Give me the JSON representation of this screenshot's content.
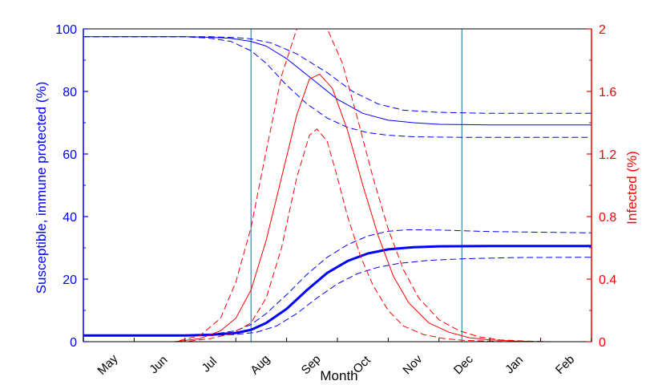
{
  "chart_data": {
    "type": "line",
    "xlabel": "Month",
    "ylabel_left": "Susceptible, immune protected (%)",
    "ylabel_right": "Infected (%)",
    "x_domain_months": [
      0,
      10
    ],
    "x_ticks": [
      {
        "label": "May",
        "pos": 0.5
      },
      {
        "label": "Jun",
        "pos": 1.5
      },
      {
        "label": "Jul",
        "pos": 2.5
      },
      {
        "label": "Aug",
        "pos": 3.5
      },
      {
        "label": "Sep",
        "pos": 4.5
      },
      {
        "label": "Oct",
        "pos": 5.5
      },
      {
        "label": "Nov",
        "pos": 6.5
      },
      {
        "label": "Dec",
        "pos": 7.5
      },
      {
        "label": "Jan",
        "pos": 8.5
      },
      {
        "label": "Feb",
        "pos": 9.5
      }
    ],
    "y_left": {
      "min": 0,
      "max": 100,
      "ticks": [
        "0",
        "20",
        "40",
        "60",
        "80",
        "100"
      ],
      "values": [
        0,
        20,
        40,
        60,
        80,
        100
      ]
    },
    "y_right": {
      "min": 0,
      "max": 2,
      "ticks": [
        "0",
        "0.4",
        "0.8",
        "1.2",
        "1.6",
        "2"
      ],
      "values": [
        0,
        0.4,
        0.8,
        1.2,
        1.6,
        2
      ]
    },
    "vlines_x": [
      3.3,
      7.45
    ],
    "colors": {
      "left_axis": "#0000ff",
      "right_axis": "#ff0000",
      "vlines": "#2f8aa8",
      "frame": "#000000"
    },
    "series": [
      {
        "axis": "left",
        "style": "solid",
        "width": 1,
        "color": "#0000ff",
        "x": [
          0,
          2.0,
          2.5,
          2.9,
          3.3,
          3.6,
          4.0,
          4.5,
          5.0,
          5.5,
          6.0,
          6.5,
          7.0,
          8.0,
          10
        ],
        "y": [
          97.5,
          97.5,
          97.3,
          97.0,
          96.0,
          94.5,
          90.5,
          84.0,
          77.5,
          73.0,
          70.8,
          70.0,
          69.5,
          69.3,
          69.3
        ]
      },
      {
        "axis": "left",
        "style": "dashed",
        "width": 1,
        "color": "#0000ff",
        "x": [
          0,
          2.5,
          3.0,
          3.3,
          3.7,
          4.2,
          4.8,
          5.3,
          5.8,
          6.3,
          7.0,
          8.0,
          10
        ],
        "y": [
          97.5,
          97.5,
          97.2,
          96.8,
          95.5,
          92.0,
          86.0,
          80.0,
          76.0,
          74.0,
          73.3,
          73.0,
          73.0
        ]
      },
      {
        "axis": "left",
        "style": "dashed",
        "width": 1,
        "color": "#0000ff",
        "x": [
          0,
          2.0,
          2.5,
          2.9,
          3.3,
          3.6,
          4.0,
          4.4,
          4.8,
          5.2,
          5.6,
          6.0,
          6.5,
          7.5,
          10
        ],
        "y": [
          97.5,
          97.5,
          97.0,
          96.0,
          93.0,
          89.0,
          82.0,
          76.0,
          71.5,
          68.5,
          66.8,
          66.0,
          65.5,
          65.3,
          65.3
        ]
      },
      {
        "axis": "left",
        "style": "solid",
        "width": 3,
        "color": "#0000ff",
        "x": [
          0,
          2.0,
          2.5,
          3.0,
          3.3,
          3.6,
          4.0,
          4.4,
          4.8,
          5.2,
          5.6,
          6.0,
          6.5,
          7.0,
          8.0,
          10
        ],
        "y": [
          2.0,
          2.0,
          2.2,
          2.8,
          3.8,
          6.0,
          10.5,
          16.5,
          22.0,
          25.8,
          28.2,
          29.5,
          30.2,
          30.5,
          30.6,
          30.6
        ]
      },
      {
        "axis": "left",
        "style": "dashed",
        "width": 1,
        "color": "#0000ff",
        "x": [
          0,
          2.0,
          2.5,
          3.0,
          3.3,
          3.6,
          4.0,
          4.4,
          4.8,
          5.2,
          5.6,
          6.0,
          6.4,
          7.0,
          8.0,
          10
        ],
        "y": [
          2.0,
          2.0,
          2.3,
          3.5,
          5.5,
          9.0,
          15.0,
          21.5,
          27.0,
          31.0,
          33.8,
          35.3,
          35.8,
          35.7,
          35.2,
          34.8
        ]
      },
      {
        "axis": "left",
        "style": "dashed",
        "width": 1,
        "color": "#0000ff",
        "x": [
          0,
          2.5,
          3.0,
          3.4,
          3.8,
          4.2,
          4.6,
          5.0,
          5.4,
          5.8,
          6.2,
          6.8,
          7.5,
          8.5,
          10
        ],
        "y": [
          2.0,
          2.0,
          2.3,
          3.0,
          5.0,
          9.0,
          14.0,
          18.5,
          21.8,
          23.8,
          25.0,
          26.0,
          26.5,
          26.9,
          27.0
        ]
      },
      {
        "axis": "right",
        "style": "solid",
        "width": 1,
        "color": "#ff0000",
        "x": [
          0,
          1.8,
          2.3,
          2.7,
          3.0,
          3.3,
          3.6,
          3.9,
          4.2,
          4.45,
          4.65,
          4.9,
          5.2,
          5.5,
          5.8,
          6.1,
          6.4,
          6.8,
          7.2,
          7.6,
          8.0,
          8.5,
          9.0,
          10
        ],
        "y": [
          0,
          0,
          0.02,
          0.07,
          0.15,
          0.33,
          0.65,
          1.05,
          1.45,
          1.68,
          1.71,
          1.62,
          1.35,
          1.0,
          0.68,
          0.42,
          0.25,
          0.12,
          0.06,
          0.025,
          0.012,
          0.004,
          0,
          0
        ]
      },
      {
        "axis": "right",
        "style": "dashed",
        "width": 1,
        "color": "#ff0000",
        "x": [
          0,
          1.8,
          2.3,
          2.7,
          3.0,
          3.3,
          3.6,
          3.9,
          4.2,
          4.5,
          4.8,
          5.1,
          5.4,
          5.7,
          6.0,
          6.3,
          6.6,
          7.0,
          7.4,
          7.8,
          8.2,
          8.7,
          9.2,
          10
        ],
        "y": [
          0,
          0,
          0.04,
          0.15,
          0.38,
          0.73,
          1.22,
          1.7,
          2.0,
          2.05,
          2.0,
          1.78,
          1.42,
          1.05,
          0.72,
          0.46,
          0.28,
          0.14,
          0.07,
          0.03,
          0.012,
          0.004,
          0,
          0
        ]
      },
      {
        "axis": "right",
        "style": "dashed",
        "width": 1,
        "color": "#ff0000",
        "x": [
          0,
          2.0,
          2.5,
          2.9,
          3.3,
          3.6,
          3.9,
          4.2,
          4.45,
          4.6,
          4.8,
          5.0,
          5.2,
          5.45,
          5.7,
          6.0,
          6.3,
          6.7,
          7.1,
          7.5,
          8.0,
          8.5,
          10
        ],
        "y": [
          0,
          0,
          0.02,
          0.05,
          0.12,
          0.28,
          0.6,
          1.05,
          1.32,
          1.36,
          1.28,
          1.05,
          0.8,
          0.55,
          0.36,
          0.2,
          0.1,
          0.045,
          0.02,
          0.008,
          0.003,
          0,
          0
        ]
      }
    ]
  }
}
